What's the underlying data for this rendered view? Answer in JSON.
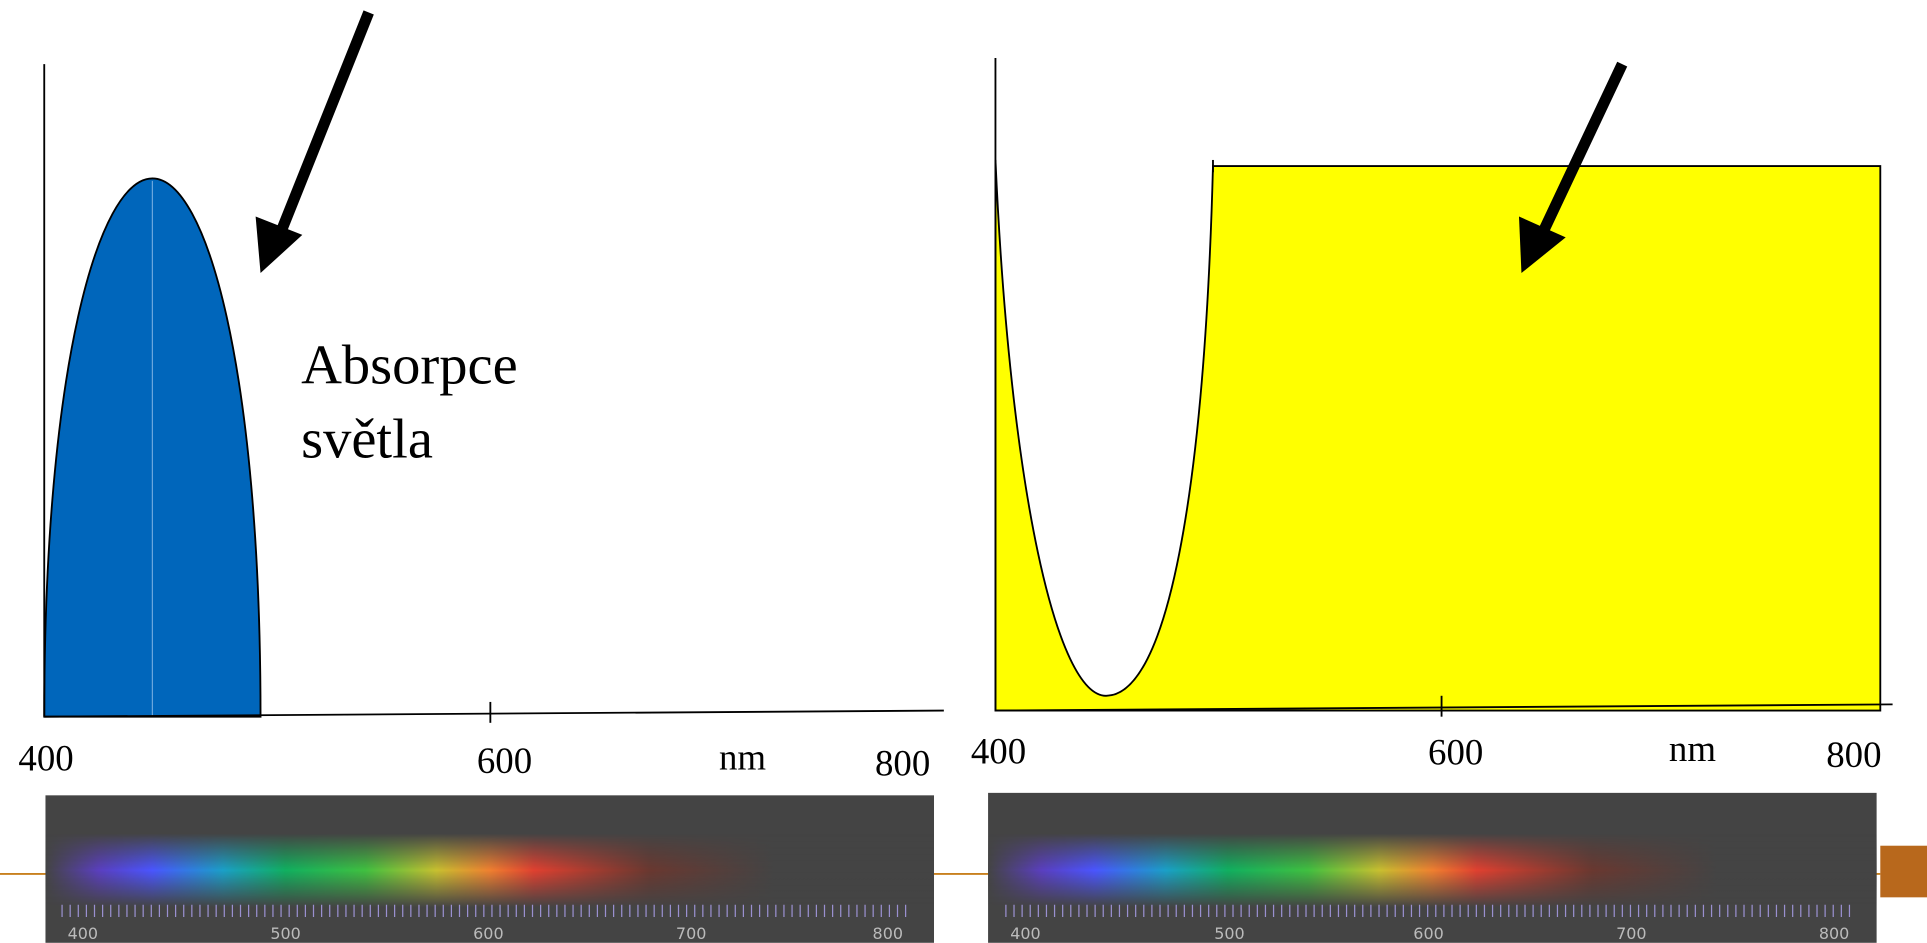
{
  "left": {
    "label": [
      "Absorpce",
      "světla"
    ],
    "axis_ticks": [
      400,
      600,
      800
    ],
    "axis_unit": "nm",
    "spectrum_scale": [
      400,
      500,
      600,
      700,
      800
    ]
  },
  "right": {
    "axis_ticks": [
      400,
      600,
      800
    ],
    "axis_unit": "nm",
    "spectrum_scale": [
      400,
      500,
      600,
      700,
      800
    ]
  }
}
